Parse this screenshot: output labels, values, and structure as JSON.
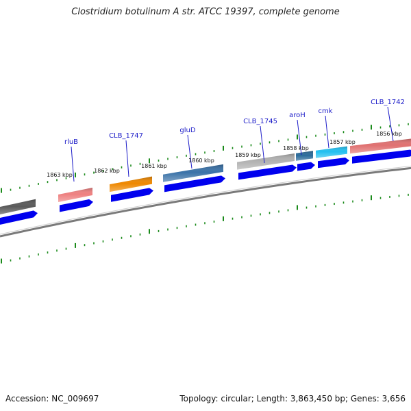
{
  "title": "Clostridium botulinum A str. ATCC 19397, complete genome",
  "footer": {
    "accession": "Accession: NC_009697",
    "summary": "Topology: circular; Length: 3,863,450 bp; Genes: 3,656"
  },
  "colors": {
    "backbone": "#7a7a7a",
    "cds_arrow": "#0000ee",
    "tick": "#1a8a1a",
    "gene_label": "#1a1ac8"
  },
  "kbp_markers": [
    "1863 kbp",
    "1862 kbp",
    "1861 kbp",
    "1860 kbp",
    "1859 kbp",
    "1858 kbp",
    "1857 kbp",
    "1856 kbp"
  ],
  "gene_labels": [
    "rluB",
    "CLB_1747",
    "gluD",
    "CLB_1745",
    "aroH",
    "cmk",
    "CLB_1742"
  ],
  "feature_colors": [
    "#5a5a5a",
    "#ee8080",
    "#ee8800",
    "#3a72a8",
    "#b0b0b0",
    "#2a6a9a",
    "#22c0f0",
    "#e07070"
  ]
}
